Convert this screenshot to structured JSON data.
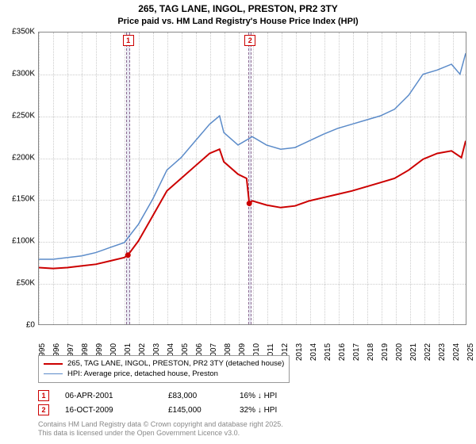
{
  "title": {
    "line1": "265, TAG LANE, INGOL, PRESTON, PR2 3TY",
    "line2": "Price paid vs. HM Land Registry's House Price Index (HPI)"
  },
  "chart": {
    "type": "line",
    "background_color": "#ffffff",
    "grid_color": "#cccccc",
    "border_color": "#888888",
    "x_range": [
      1995,
      2025
    ],
    "y_range": [
      0,
      350000
    ],
    "y_ticks": [
      {
        "v": 0,
        "label": "£0"
      },
      {
        "v": 50000,
        "label": "£50K"
      },
      {
        "v": 100000,
        "label": "£100K"
      },
      {
        "v": 150000,
        "label": "£150K"
      },
      {
        "v": 200000,
        "label": "£200K"
      },
      {
        "v": 250000,
        "label": "£250K"
      },
      {
        "v": 300000,
        "label": "£300K"
      },
      {
        "v": 350000,
        "label": "£350K"
      }
    ],
    "x_ticks": [
      1995,
      1996,
      1997,
      1998,
      1999,
      2000,
      2001,
      2002,
      2003,
      2004,
      2005,
      2006,
      2007,
      2008,
      2009,
      2010,
      2011,
      2012,
      2013,
      2014,
      2015,
      2016,
      2017,
      2018,
      2019,
      2020,
      2021,
      2022,
      2023,
      2024,
      2025
    ],
    "y_label_fontsize": 10,
    "x_label_fontsize": 10,
    "series": [
      {
        "name": "price_paid",
        "label": "265, TAG LANE, INGOL, PRESTON, PR2 3TY (detached house)",
        "color": "#cc0000",
        "line_width": 2,
        "points": [
          [
            1995,
            68000
          ],
          [
            1996,
            67000
          ],
          [
            1997,
            68000
          ],
          [
            1998,
            70000
          ],
          [
            1999,
            72000
          ],
          [
            2000,
            76000
          ],
          [
            2001,
            80000
          ],
          [
            2001.26,
            83000
          ],
          [
            2002,
            100000
          ],
          [
            2003,
            130000
          ],
          [
            2004,
            160000
          ],
          [
            2005,
            175000
          ],
          [
            2006,
            190000
          ],
          [
            2007,
            205000
          ],
          [
            2007.7,
            210000
          ],
          [
            2008,
            195000
          ],
          [
            2009,
            180000
          ],
          [
            2009.6,
            175000
          ],
          [
            2009.79,
            145000
          ],
          [
            2010,
            148000
          ],
          [
            2011,
            143000
          ],
          [
            2012,
            140000
          ],
          [
            2013,
            142000
          ],
          [
            2014,
            148000
          ],
          [
            2015,
            152000
          ],
          [
            2016,
            156000
          ],
          [
            2017,
            160000
          ],
          [
            2018,
            165000
          ],
          [
            2019,
            170000
          ],
          [
            2020,
            175000
          ],
          [
            2021,
            185000
          ],
          [
            2022,
            198000
          ],
          [
            2023,
            205000
          ],
          [
            2024,
            208000
          ],
          [
            2024.7,
            200000
          ],
          [
            2025,
            220000
          ]
        ],
        "markers": [
          {
            "x": 2001.26,
            "y": 83000
          },
          {
            "x": 2009.79,
            "y": 145000
          }
        ]
      },
      {
        "name": "hpi",
        "label": "HPI: Average price, detached house, Preston",
        "color": "#5b8bc9",
        "line_width": 1.5,
        "points": [
          [
            1995,
            78000
          ],
          [
            1996,
            78000
          ],
          [
            1997,
            80000
          ],
          [
            1998,
            82000
          ],
          [
            1999,
            86000
          ],
          [
            2000,
            92000
          ],
          [
            2001,
            98000
          ],
          [
            2002,
            120000
          ],
          [
            2003,
            150000
          ],
          [
            2004,
            185000
          ],
          [
            2005,
            200000
          ],
          [
            2006,
            220000
          ],
          [
            2007,
            240000
          ],
          [
            2007.7,
            250000
          ],
          [
            2008,
            230000
          ],
          [
            2009,
            215000
          ],
          [
            2010,
            225000
          ],
          [
            2011,
            215000
          ],
          [
            2012,
            210000
          ],
          [
            2013,
            212000
          ],
          [
            2014,
            220000
          ],
          [
            2015,
            228000
          ],
          [
            2016,
            235000
          ],
          [
            2017,
            240000
          ],
          [
            2018,
            245000
          ],
          [
            2019,
            250000
          ],
          [
            2020,
            258000
          ],
          [
            2021,
            275000
          ],
          [
            2022,
            300000
          ],
          [
            2023,
            305000
          ],
          [
            2024,
            312000
          ],
          [
            2024.6,
            300000
          ],
          [
            2025,
            325000
          ]
        ]
      }
    ],
    "vertical_bands": [
      {
        "x_center": 2001.26,
        "width_years": 0.25,
        "label": "1",
        "label_color": "#cc0000"
      },
      {
        "x_center": 2009.79,
        "width_years": 0.25,
        "label": "2",
        "label_color": "#cc0000"
      }
    ],
    "band_fill": "rgba(209,209,230,0.5)",
    "band_border": "#8b6a91"
  },
  "legend": {
    "rows": [
      {
        "color": "#cc0000",
        "width": 2,
        "label": "265, TAG LANE, INGOL, PRESTON, PR2 3TY (detached house)"
      },
      {
        "color": "#5b8bc9",
        "width": 1.5,
        "label": "HPI: Average price, detached house, Preston"
      }
    ]
  },
  "sales": [
    {
      "marker": "1",
      "date": "06-APR-2001",
      "price": "£83,000",
      "diff": "16% ↓ HPI"
    },
    {
      "marker": "2",
      "date": "16-OCT-2009",
      "price": "£145,000",
      "diff": "32% ↓ HPI"
    }
  ],
  "attribution": {
    "line1": "Contains HM Land Registry data © Crown copyright and database right 2025.",
    "line2": "This data is licensed under the Open Government Licence v3.0."
  }
}
